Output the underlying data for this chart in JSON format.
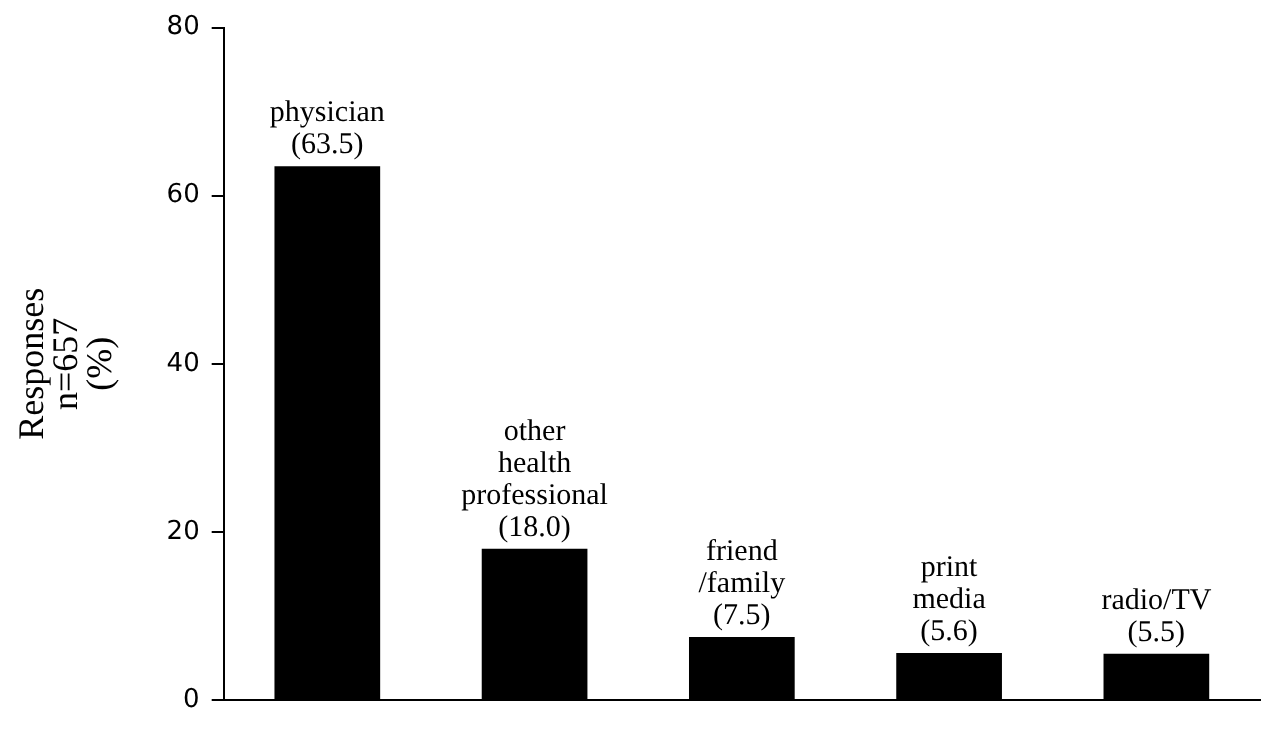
{
  "chart_data": {
    "type": "bar",
    "ylabel": "Responses\nn=657\n(%)",
    "categories": [
      "physician",
      "other health professional",
      "friend /family",
      "print media",
      "radio/TV"
    ],
    "values": [
      63.5,
      18.0,
      7.5,
      5.6,
      5.5
    ],
    "value_labels": [
      "(63.5)",
      "(18.0)",
      "(7.5)",
      "(5.6)",
      "(5.5)"
    ],
    "color": "#000000",
    "ylim": [
      0,
      80
    ],
    "yticks": [
      0,
      20,
      40,
      60,
      80
    ],
    "grid": false,
    "legend": false,
    "tick_labels": "y"
  }
}
